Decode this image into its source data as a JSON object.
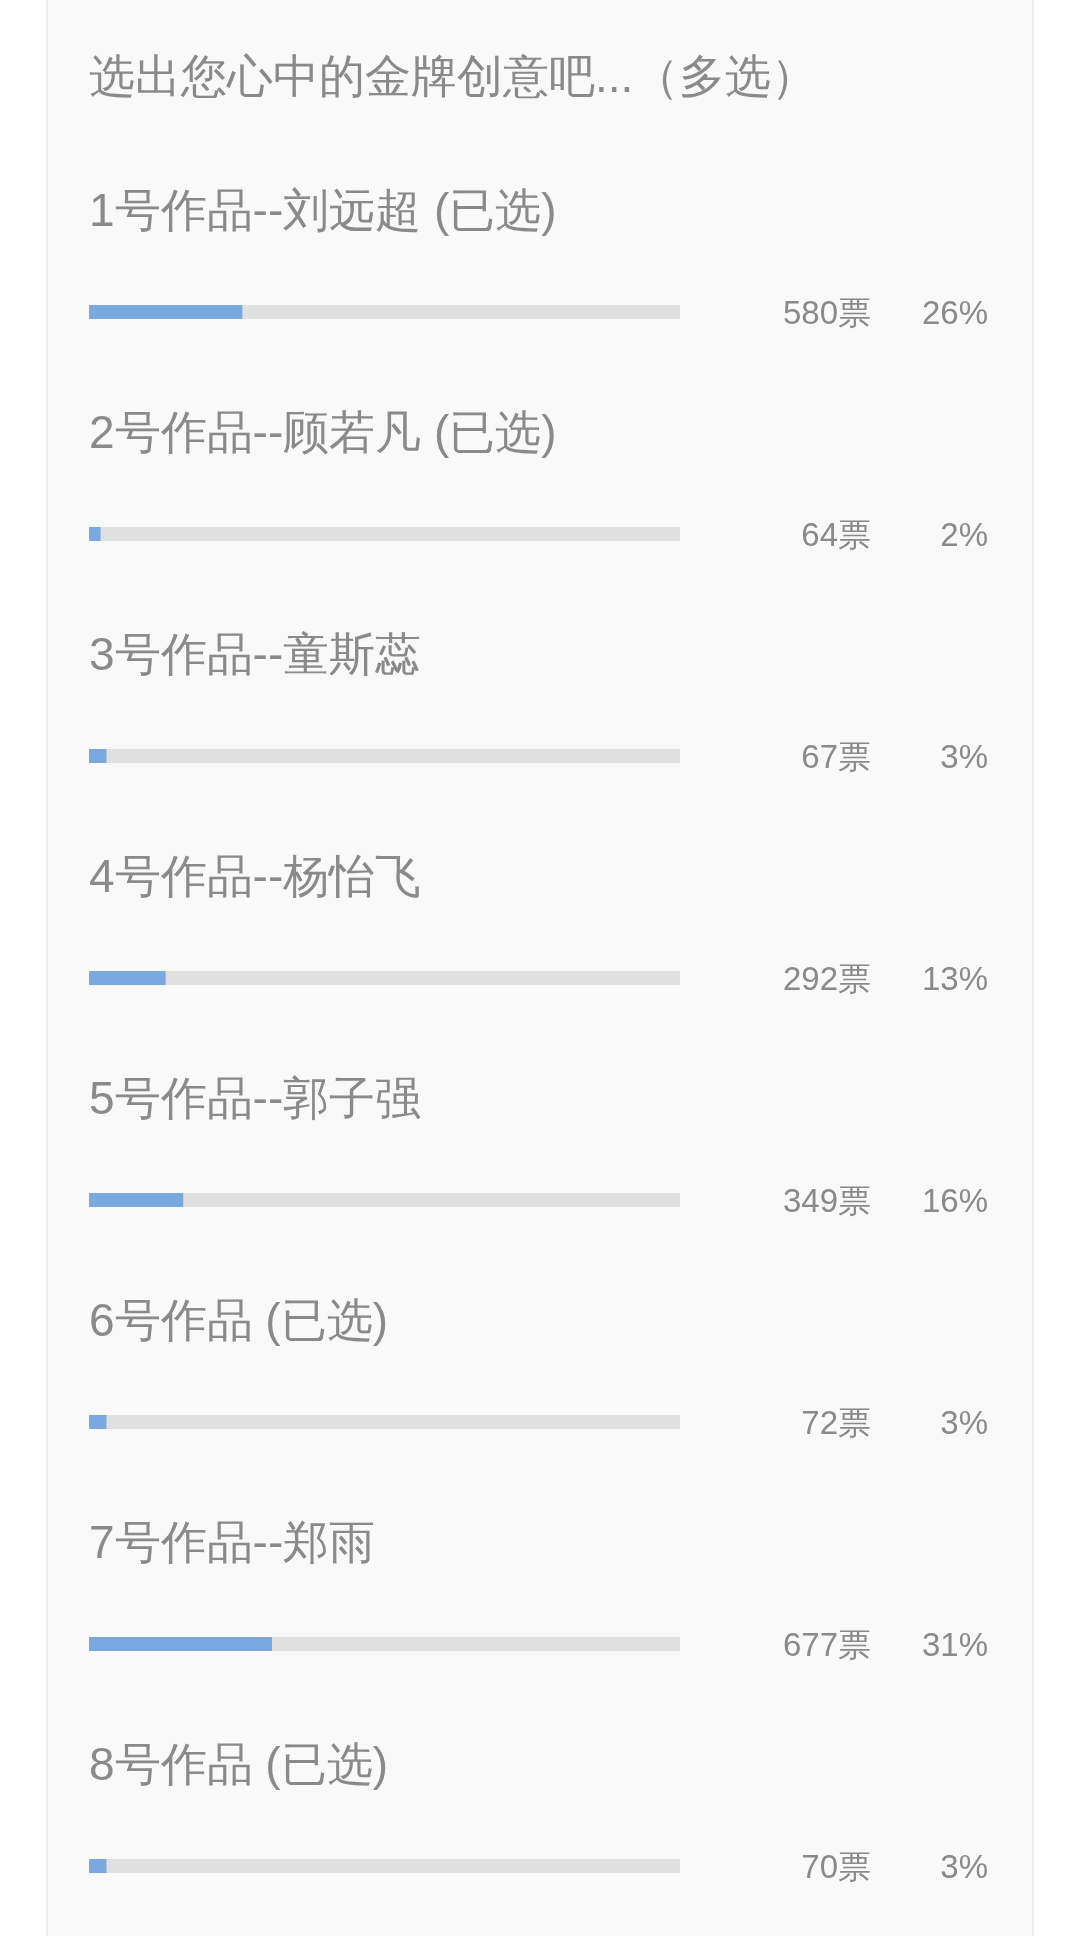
{
  "chart_data": {
    "type": "bar",
    "orientation": "horizontal",
    "stacked": true,
    "title": "选出您心中的金牌创意吧...（多选）",
    "categories": [
      "1号作品--刘远超 (已选)",
      "2号作品--顾若凡 (已选)",
      "3号作品--童斯蕊",
      "4号作品--杨怡飞",
      "5号作品--郭子强",
      "6号作品 (已选)",
      "7号作品--郑雨",
      "8号作品 (已选)"
    ],
    "series": [
      {
        "color": "#7aa9e0",
        "values": [
          26,
          2,
          3,
          13,
          16,
          3,
          31,
          3
        ],
        "value_labels": [
          "26%",
          "2%",
          "3%",
          "13%",
          "16%",
          "3%",
          "31%",
          "3%"
        ]
      },
      {
        "color": "#e0e0e0",
        "values": [
          74,
          98,
          97,
          87,
          84,
          97,
          69,
          97
        ]
      }
    ],
    "xlim": [
      0,
      100
    ],
    "tick_labels": "y",
    "annotations": [
      "580票",
      "64票",
      "67票",
      "292票",
      "349票",
      "72票",
      "677票",
      "70票"
    ]
  }
}
